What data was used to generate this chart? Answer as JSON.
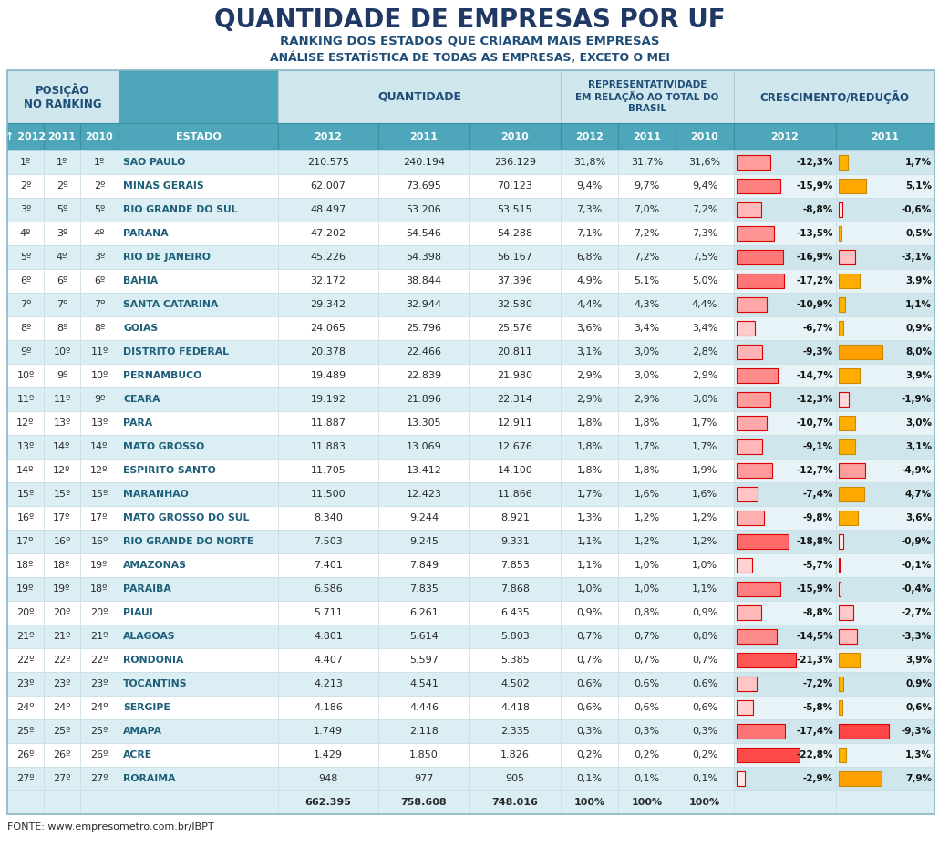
{
  "title": "QUANTIDADE DE EMPRESAS POR UF",
  "subtitle1": "RANKING DOS ESTADOS QUE CRIARAM MAIS EMPRESAS",
  "subtitle2": "ANÁLISE ESTATÍSTICA DE TODAS AS EMPRESAS, EXCETO O MEI",
  "col_headers_group1": "POSIÇÃO\nNO RANKING",
  "col_headers_group2": "QUANTIDADE",
  "col_headers_group3": "REPRESENTATIVIDADE\nEM RELAÇÃO AO TOTAL DO\nBRASIL",
  "col_headers_group4": "CRESCIMENTO/REDUÇÃO",
  "sub_headers": [
    "↑ 2012",
    "2011",
    "2010",
    "ESTADO",
    "2012",
    "2011",
    "2010",
    "2012",
    "2011",
    "2010",
    "2012",
    "2011"
  ],
  "rows": [
    [
      "1º",
      "1º",
      "1º",
      "SAO PAULO",
      "210.575",
      "240.194",
      "236.129",
      "31,8%",
      "31,7%",
      "31,6%",
      "-12,3%",
      "1,7%"
    ],
    [
      "2º",
      "2º",
      "2º",
      "MINAS GERAIS",
      "62.007",
      "73.695",
      "70.123",
      "9,4%",
      "9,7%",
      "9,4%",
      "-15,9%",
      "5,1%"
    ],
    [
      "3º",
      "5º",
      "5º",
      "RIO GRANDE DO SUL",
      "48.497",
      "53.206",
      "53.515",
      "7,3%",
      "7,0%",
      "7,2%",
      "-8,8%",
      "-0,6%"
    ],
    [
      "4º",
      "3º",
      "4º",
      "PARANA",
      "47.202",
      "54.546",
      "54.288",
      "7,1%",
      "7,2%",
      "7,3%",
      "-13,5%",
      "0,5%"
    ],
    [
      "5º",
      "4º",
      "3º",
      "RIO DE JANEIRO",
      "45.226",
      "54.398",
      "56.167",
      "6,8%",
      "7,2%",
      "7,5%",
      "-16,9%",
      "-3,1%"
    ],
    [
      "6º",
      "6º",
      "6º",
      "BAHIA",
      "32.172",
      "38.844",
      "37.396",
      "4,9%",
      "5,1%",
      "5,0%",
      "-17,2%",
      "3,9%"
    ],
    [
      "7º",
      "7º",
      "7º",
      "SANTA CATARINA",
      "29.342",
      "32.944",
      "32.580",
      "4,4%",
      "4,3%",
      "4,4%",
      "-10,9%",
      "1,1%"
    ],
    [
      "8º",
      "8º",
      "8º",
      "GOIAS",
      "24.065",
      "25.796",
      "25.576",
      "3,6%",
      "3,4%",
      "3,4%",
      "-6,7%",
      "0,9%"
    ],
    [
      "9º",
      "10º",
      "11º",
      "DISTRITO FEDERAL",
      "20.378",
      "22.466",
      "20.811",
      "3,1%",
      "3,0%",
      "2,8%",
      "-9,3%",
      "8,0%"
    ],
    [
      "10º",
      "9º",
      "10º",
      "PERNAMBUCO",
      "19.489",
      "22.839",
      "21.980",
      "2,9%",
      "3,0%",
      "2,9%",
      "-14,7%",
      "3,9%"
    ],
    [
      "11º",
      "11º",
      "9º",
      "CEARA",
      "19.192",
      "21.896",
      "22.314",
      "2,9%",
      "2,9%",
      "3,0%",
      "-12,3%",
      "-1,9%"
    ],
    [
      "12º",
      "13º",
      "13º",
      "PARA",
      "11.887",
      "13.305",
      "12.911",
      "1,8%",
      "1,8%",
      "1,7%",
      "-10,7%",
      "3,0%"
    ],
    [
      "13º",
      "14º",
      "14º",
      "MATO GROSSO",
      "11.883",
      "13.069",
      "12.676",
      "1,8%",
      "1,7%",
      "1,7%",
      "-9,1%",
      "3,1%"
    ],
    [
      "14º",
      "12º",
      "12º",
      "ESPIRITO SANTO",
      "11.705",
      "13.412",
      "14.100",
      "1,8%",
      "1,8%",
      "1,9%",
      "-12,7%",
      "-4,9%"
    ],
    [
      "15º",
      "15º",
      "15º",
      "MARANHAO",
      "11.500",
      "12.423",
      "11.866",
      "1,7%",
      "1,6%",
      "1,6%",
      "-7,4%",
      "4,7%"
    ],
    [
      "16º",
      "17º",
      "17º",
      "MATO GROSSO DO SUL",
      "8.340",
      "9.244",
      "8.921",
      "1,3%",
      "1,2%",
      "1,2%",
      "-9,8%",
      "3,6%"
    ],
    [
      "17º",
      "16º",
      "16º",
      "RIO GRANDE DO NORTE",
      "7.503",
      "9.245",
      "9.331",
      "1,1%",
      "1,2%",
      "1,2%",
      "-18,8%",
      "-0,9%"
    ],
    [
      "18º",
      "18º",
      "19º",
      "AMAZONAS",
      "7.401",
      "7.849",
      "7.853",
      "1,1%",
      "1,0%",
      "1,0%",
      "-5,7%",
      "-0,1%"
    ],
    [
      "19º",
      "19º",
      "18º",
      "PARAIBA",
      "6.586",
      "7.835",
      "7.868",
      "1,0%",
      "1,0%",
      "1,1%",
      "-15,9%",
      "-0,4%"
    ],
    [
      "20º",
      "20º",
      "20º",
      "PIAUI",
      "5.711",
      "6.261",
      "6.435",
      "0,9%",
      "0,8%",
      "0,9%",
      "-8,8%",
      "-2,7%"
    ],
    [
      "21º",
      "21º",
      "21º",
      "ALAGOAS",
      "4.801",
      "5.614",
      "5.803",
      "0,7%",
      "0,7%",
      "0,8%",
      "-14,5%",
      "-3,3%"
    ],
    [
      "22º",
      "22º",
      "22º",
      "RONDONIA",
      "4.407",
      "5.597",
      "5.385",
      "0,7%",
      "0,7%",
      "0,7%",
      "-21,3%",
      "3,9%"
    ],
    [
      "23º",
      "23º",
      "23º",
      "TOCANTINS",
      "4.213",
      "4.541",
      "4.502",
      "0,6%",
      "0,6%",
      "0,6%",
      "-7,2%",
      "0,9%"
    ],
    [
      "24º",
      "24º",
      "24º",
      "SERGIPE",
      "4.186",
      "4.446",
      "4.418",
      "0,6%",
      "0,6%",
      "0,6%",
      "-5,8%",
      "0,6%"
    ],
    [
      "25º",
      "25º",
      "25º",
      "AMAPA",
      "1.749",
      "2.118",
      "2.335",
      "0,3%",
      "0,3%",
      "0,3%",
      "-17,4%",
      "-9,3%"
    ],
    [
      "26º",
      "26º",
      "26º",
      "ACRE",
      "1.429",
      "1.850",
      "1.826",
      "0,2%",
      "0,2%",
      "0,2%",
      "-22,8%",
      "1,3%"
    ],
    [
      "27º",
      "27º",
      "27º",
      "RORAIMA",
      "948",
      "977",
      "905",
      "0,1%",
      "0,1%",
      "0,1%",
      "-2,9%",
      "7,9%"
    ]
  ],
  "totals": [
    "",
    "",
    "",
    "",
    "662.395",
    "758.608",
    "748.016",
    "100%",
    "100%",
    "100%",
    "",
    ""
  ],
  "footer": "FONTE: www.empresometro.com.br/IBPT",
  "bg_color": "#ffffff",
  "header_teal": "#4da6ba",
  "header_light": "#cfe6ed",
  "row_alt_blue": "#daeef3",
  "row_alt_white": "#ffffff",
  "title_color": "#1f3864",
  "subtitle_color": "#1e4d78",
  "teal_text": "#1e5f7a",
  "2012_growth_values": [
    -12.3,
    -15.9,
    -8.8,
    -13.5,
    -16.9,
    -17.2,
    -10.9,
    -6.7,
    -9.3,
    -14.7,
    -12.3,
    -10.7,
    -9.1,
    -12.7,
    -7.4,
    -9.8,
    -18.8,
    -5.7,
    -15.9,
    -8.8,
    -14.5,
    -21.3,
    -7.2,
    -5.8,
    -17.4,
    -22.8,
    -2.9
  ],
  "2011_growth_values": [
    1.7,
    5.1,
    -0.6,
    0.5,
    -3.1,
    3.9,
    1.1,
    0.9,
    8.0,
    3.9,
    -1.9,
    3.0,
    3.1,
    -4.9,
    4.7,
    3.6,
    -0.9,
    -0.1,
    -0.4,
    -2.7,
    -3.3,
    3.9,
    0.9,
    0.6,
    -9.3,
    1.3,
    7.9
  ]
}
